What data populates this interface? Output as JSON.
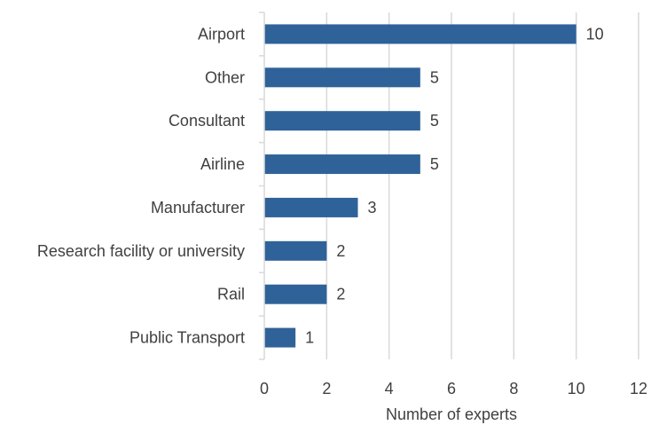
{
  "chart_data": {
    "type": "bar",
    "orientation": "horizontal",
    "categories": [
      "Airport",
      "Other",
      "Consultant",
      "Airline",
      "Manufacturer",
      "Research facility or university",
      "Rail",
      "Public Transport"
    ],
    "values": [
      10,
      5,
      5,
      5,
      3,
      2,
      2,
      1
    ],
    "xlabel": "Number of experts",
    "ylabel": "",
    "xlim": [
      0,
      12
    ],
    "xticks": [
      "0",
      "2",
      "4",
      "6",
      "8",
      "10",
      "12"
    ],
    "grid": "vertical",
    "legend": "none",
    "bar_color": "#2f6299",
    "grid_color": "#d9d9d9"
  }
}
